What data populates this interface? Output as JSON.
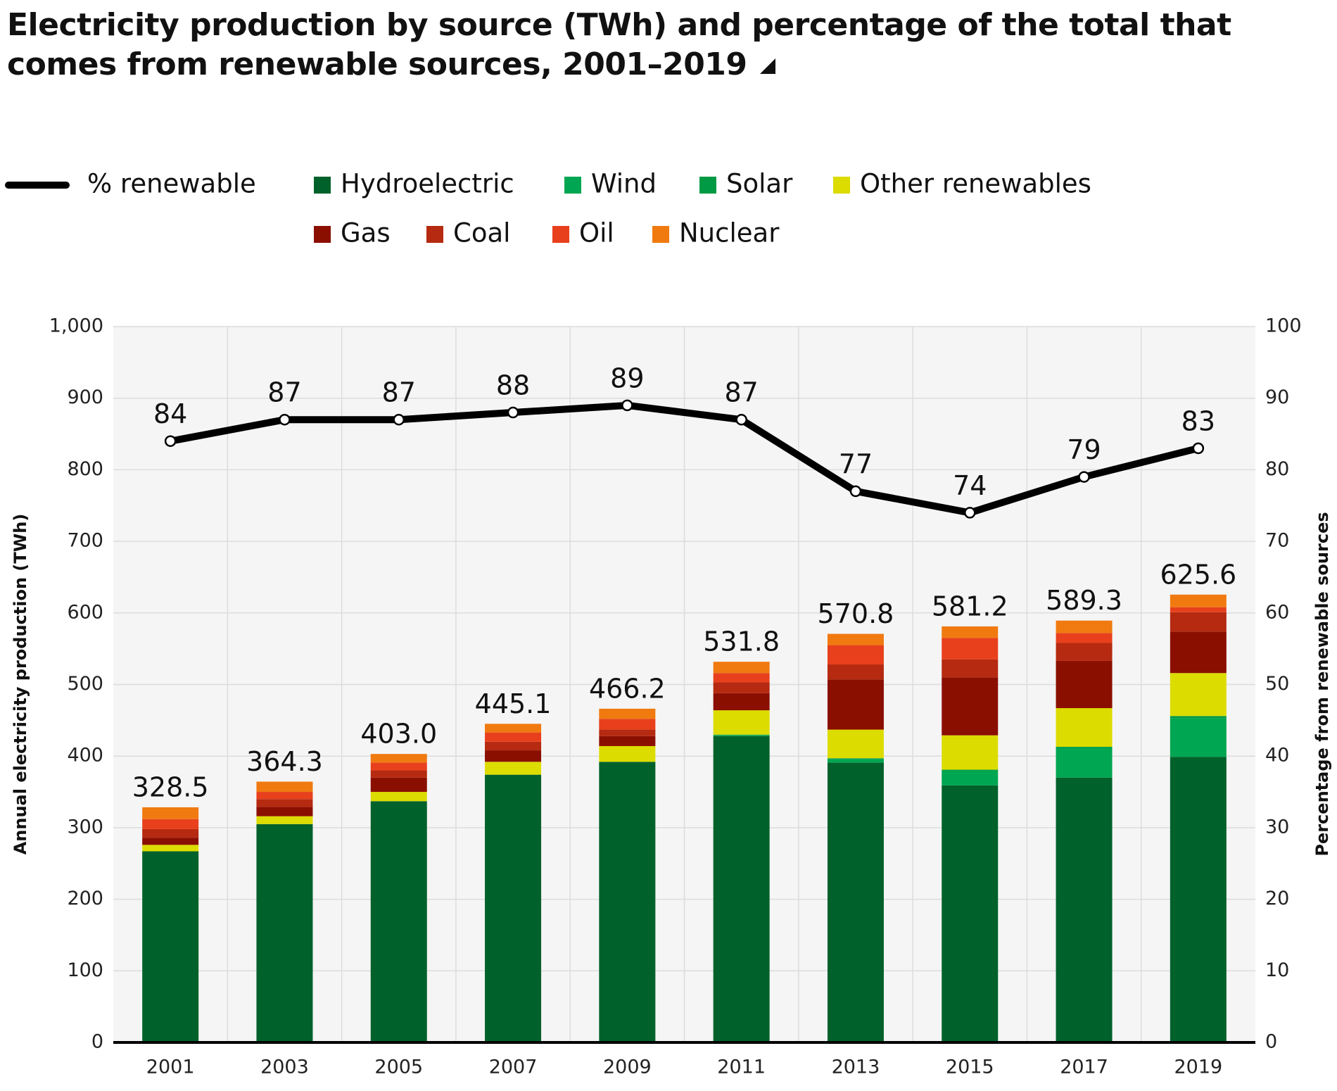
{
  "chart_data": {
    "type": "bar",
    "title": "Electricity production by source (TWh) and percentage of the total that comes from renewable sources, 2001–2019",
    "y_label": "Annual electricity production (TWh)",
    "y2_label": "Percentage from renewable sources",
    "categories": [
      "2001",
      "2003",
      "2005",
      "2007",
      "2009",
      "2011",
      "2013",
      "2015",
      "2017",
      "2019"
    ],
    "stacked": true,
    "grid": true,
    "ylim": [
      0,
      1000
    ],
    "yticks": [
      0,
      100,
      200,
      300,
      400,
      500,
      600,
      700,
      800,
      900,
      {
        "value": 1000,
        "label": "1,000"
      }
    ],
    "y2lim": [
      0,
      100
    ],
    "y2ticks": [
      0,
      10,
      20,
      30,
      40,
      50,
      60,
      70,
      80,
      90,
      100
    ],
    "series": [
      {
        "name": "% renewable",
        "type": "line",
        "axis": "y2",
        "color": "#000000",
        "values": [
          84,
          87,
          87,
          88,
          89,
          87,
          77,
          74,
          79,
          83
        ]
      },
      {
        "name": "Hydroelectric",
        "color": "#00612b",
        "values": [
          267,
          305,
          337,
          374,
          392,
          428,
          391,
          359,
          370,
          399
        ]
      },
      {
        "name": "Wind",
        "color": "#00a651",
        "values": [
          0,
          0,
          0,
          0,
          0,
          1,
          5,
          21,
          42,
          54
        ]
      },
      {
        "name": "Solar",
        "color": "#009a44",
        "values": [
          0,
          0,
          0,
          0,
          0,
          1,
          1,
          1,
          1,
          3
        ]
      },
      {
        "name": "Other renewables",
        "color": "#dcdc00",
        "values": [
          9,
          11,
          13,
          18,
          22,
          34,
          40,
          48,
          54,
          60
        ]
      },
      {
        "name": "Gas",
        "color": "#8b0f00",
        "values": [
          10,
          13,
          20,
          16,
          14,
          24,
          70,
          81,
          66,
          58
        ]
      },
      {
        "name": "Coal",
        "color": "#b52a10",
        "values": [
          12,
          11,
          10,
          12,
          9,
          15,
          21,
          25,
          25,
          27
        ]
      },
      {
        "name": "Oil",
        "color": "#e8401c",
        "values": [
          14,
          10,
          11,
          13,
          15,
          13,
          27,
          30,
          14,
          7
        ]
      },
      {
        "name": "Nuclear",
        "color": "#f07a10",
        "values": [
          16.5,
          14.3,
          12,
          12.1,
          14.2,
          15.8,
          15.8,
          16.2,
          17.3,
          17.6
        ]
      }
    ],
    "totals": {
      "values": [
        328.5,
        364.3,
        403.0,
        445.1,
        466.2,
        531.8,
        570.8,
        581.2,
        589.3,
        625.6
      ],
      "value_labels": [
        "328.5",
        "364.3",
        "403.0",
        "445.1",
        "466.2",
        "531.8",
        "570.8",
        "581.2",
        "589.3",
        "625.6"
      ]
    }
  }
}
